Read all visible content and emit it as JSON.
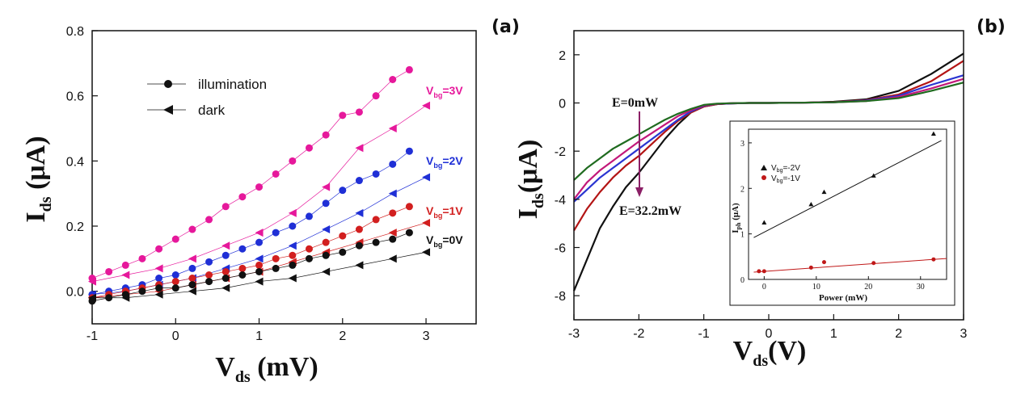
{
  "chart_data": [
    {
      "panel": "(a)",
      "type": "scatter",
      "xlabel_main": "V",
      "xlabel_sub": "ds",
      "xlabel_unit": " (mV)",
      "ylabel_main": "I",
      "ylabel_sub": "ds",
      "ylabel_unit": " (μA)",
      "xlim": [
        -1,
        3.6
      ],
      "ylim": [
        -0.1,
        0.8
      ],
      "xticks": [
        -1,
        0,
        1,
        2,
        3
      ],
      "yticks": [
        0.0,
        0.2,
        0.4,
        0.6,
        0.8
      ],
      "ytick_labels": [
        "0.0",
        "0.2",
        "0.4",
        "0.6",
        "0.8"
      ],
      "legend": [
        {
          "label": "illumination",
          "marker": "circle"
        },
        {
          "label": "dark",
          "marker": "triangle-left"
        }
      ],
      "series": [
        {
          "name": "Vbg=3V",
          "label_main": "V",
          "label_sub": "bg",
          "label_rest": "=3V",
          "color": "#e6189b",
          "illumination": {
            "x": [
              -1,
              -0.8,
              -0.6,
              -0.4,
              -0.2,
              0,
              0.2,
              0.4,
              0.6,
              0.8,
              1,
              1.2,
              1.4,
              1.6,
              1.8,
              2,
              2.2,
              2.4,
              2.6,
              2.8
            ],
            "y": [
              0.04,
              0.06,
              0.08,
              0.1,
              0.13,
              0.16,
              0.19,
              0.22,
              0.26,
              0.29,
              0.32,
              0.36,
              0.4,
              0.44,
              0.48,
              0.54,
              0.55,
              0.6,
              0.65,
              0.68
            ]
          },
          "dark": {
            "x": [
              -1,
              -0.6,
              -0.2,
              0.2,
              0.6,
              1,
              1.4,
              1.8,
              2.2,
              2.6,
              3
            ],
            "y": [
              0.03,
              0.05,
              0.07,
              0.1,
              0.14,
              0.18,
              0.24,
              0.32,
              0.44,
              0.5,
              0.57
            ]
          }
        },
        {
          "name": "Vbg=2V",
          "label_main": "V",
          "label_sub": "bg",
          "label_rest": "=2V",
          "color": "#1f2fd6",
          "illumination": {
            "x": [
              -1,
              -0.8,
              -0.6,
              -0.4,
              -0.2,
              0,
              0.2,
              0.4,
              0.6,
              0.8,
              1,
              1.2,
              1.4,
              1.6,
              1.8,
              2,
              2.2,
              2.4,
              2.6,
              2.8
            ],
            "y": [
              -0.01,
              0.0,
              0.01,
              0.02,
              0.04,
              0.05,
              0.07,
              0.09,
              0.11,
              0.13,
              0.15,
              0.18,
              0.2,
              0.23,
              0.27,
              0.31,
              0.34,
              0.36,
              0.39,
              0.43
            ]
          },
          "dark": {
            "x": [
              -1,
              -0.6,
              -0.2,
              0.2,
              0.6,
              1,
              1.4,
              1.8,
              2.2,
              2.6,
              3
            ],
            "y": [
              -0.01,
              0.0,
              0.02,
              0.04,
              0.07,
              0.1,
              0.14,
              0.19,
              0.24,
              0.3,
              0.35
            ]
          }
        },
        {
          "name": "Vbg=1V",
          "label_main": "V",
          "label_sub": "bg",
          "label_rest": "=1V",
          "color": "#d21f1f",
          "illumination": {
            "x": [
              -1,
              -0.8,
              -0.6,
              -0.4,
              -0.2,
              0,
              0.2,
              0.4,
              0.6,
              0.8,
              1,
              1.2,
              1.4,
              1.6,
              1.8,
              2,
              2.2,
              2.4,
              2.6,
              2.8
            ],
            "y": [
              -0.02,
              -0.01,
              0.0,
              0.01,
              0.02,
              0.03,
              0.04,
              0.05,
              0.06,
              0.07,
              0.08,
              0.1,
              0.11,
              0.13,
              0.15,
              0.17,
              0.19,
              0.22,
              0.24,
              0.26
            ]
          },
          "dark": {
            "x": [
              -1,
              -0.6,
              -0.2,
              0.2,
              0.6,
              1,
              1.4,
              1.8,
              2.2,
              2.6,
              3
            ],
            "y": [
              -0.02,
              -0.01,
              0.0,
              0.02,
              0.04,
              0.06,
              0.09,
              0.12,
              0.15,
              0.18,
              0.21
            ]
          }
        },
        {
          "name": "Vbg=0V",
          "label_main": "V",
          "label_sub": "bg",
          "label_rest": "=0V",
          "color": "#111111",
          "illumination": {
            "x": [
              -1,
              -0.8,
              -0.6,
              -0.4,
              -0.2,
              0,
              0.2,
              0.4,
              0.6,
              0.8,
              1,
              1.2,
              1.4,
              1.6,
              1.8,
              2,
              2.2,
              2.4,
              2.6,
              2.8
            ],
            "y": [
              -0.03,
              -0.02,
              -0.01,
              0.0,
              0.01,
              0.01,
              0.02,
              0.03,
              0.04,
              0.05,
              0.06,
              0.07,
              0.08,
              0.1,
              0.11,
              0.12,
              0.14,
              0.15,
              0.16,
              0.18
            ]
          },
          "dark": {
            "x": [
              -1,
              -0.6,
              -0.2,
              0.2,
              0.6,
              1,
              1.4,
              1.8,
              2.2,
              2.6,
              3
            ],
            "y": [
              -0.02,
              -0.02,
              -0.01,
              0.0,
              0.01,
              0.03,
              0.04,
              0.06,
              0.08,
              0.1,
              0.12
            ]
          }
        }
      ]
    },
    {
      "panel": "(b)",
      "type": "line",
      "xlabel_main": "V",
      "xlabel_sub": "ds",
      "xlabel_unit": "(V)",
      "ylabel_main": "I",
      "ylabel_sub": "ds",
      "ylabel_unit": "(μA)",
      "xlim": [
        -3,
        3
      ],
      "ylim": [
        -9,
        3
      ],
      "xticks": [
        -3,
        -2,
        -1,
        0,
        1,
        2,
        3
      ],
      "yticks": [
        -8,
        -6,
        -4,
        -2,
        0,
        2
      ],
      "annotations": {
        "top": "E=0mW",
        "bottom": "E=32.2mW"
      },
      "curves": [
        {
          "name": "E=32.2mW",
          "color": "#111111",
          "x": [
            -3,
            -2.8,
            -2.6,
            -2.4,
            -2.2,
            -2,
            -1.8,
            -1.6,
            -1.4,
            -1.2,
            -1,
            -0.8,
            -0.6,
            -0.3,
            0,
            0.5,
            1,
            1.5,
            2,
            2.5,
            3
          ],
          "y": [
            -7.8,
            -6.5,
            -5.2,
            -4.3,
            -3.5,
            -2.9,
            -2.2,
            -1.5,
            -0.9,
            -0.4,
            -0.15,
            -0.05,
            -0.02,
            0.0,
            0.0,
            0.01,
            0.05,
            0.15,
            0.5,
            1.2,
            2.05
          ]
        },
        {
          "name": "curve-red",
          "color": "#b31414",
          "x": [
            -3,
            -2.8,
            -2.6,
            -2.4,
            -2.2,
            -2,
            -1.8,
            -1.6,
            -1.4,
            -1.2,
            -1,
            -0.8,
            -0.6,
            -0.3,
            0,
            0.5,
            1,
            1.5,
            2,
            2.5,
            3
          ],
          "y": [
            -5.3,
            -4.4,
            -3.7,
            -3.1,
            -2.6,
            -2.2,
            -1.7,
            -1.2,
            -0.75,
            -0.4,
            -0.15,
            -0.05,
            -0.02,
            0.0,
            0.0,
            0.01,
            0.04,
            0.12,
            0.35,
            0.9,
            1.75
          ]
        },
        {
          "name": "curve-blue",
          "color": "#2a35d1",
          "x": [
            -3,
            -2.8,
            -2.6,
            -2.4,
            -2.2,
            -2,
            -1.8,
            -1.6,
            -1.4,
            -1.2,
            -1,
            -0.8,
            -0.6,
            -0.3,
            0,
            0.5,
            1,
            1.5,
            2,
            2.5,
            3
          ],
          "y": [
            -4.1,
            -3.6,
            -3.1,
            -2.7,
            -2.3,
            -1.9,
            -1.5,
            -1.1,
            -0.7,
            -0.35,
            -0.12,
            -0.04,
            -0.02,
            0.0,
            0.0,
            0.01,
            0.03,
            0.1,
            0.3,
            0.75,
            1.15
          ]
        },
        {
          "name": "curve-magenta",
          "color": "#c2187a",
          "x": [
            -3,
            -2.8,
            -2.6,
            -2.4,
            -2.2,
            -2,
            -1.8,
            -1.6,
            -1.4,
            -1.2,
            -1,
            -0.8,
            -0.6,
            -0.3,
            0,
            0.5,
            1,
            1.5,
            2,
            2.5,
            3
          ],
          "y": [
            -4.0,
            -3.3,
            -2.8,
            -2.4,
            -2.0,
            -1.6,
            -1.25,
            -0.9,
            -0.55,
            -0.3,
            -0.1,
            -0.04,
            -0.01,
            0.0,
            0.0,
            0.01,
            0.03,
            0.08,
            0.25,
            0.6,
            1.0
          ]
        },
        {
          "name": "E=0mW",
          "color": "#1f6b1f",
          "x": [
            -3,
            -2.8,
            -2.6,
            -2.4,
            -2.2,
            -2,
            -1.8,
            -1.6,
            -1.4,
            -1.2,
            -1,
            -0.8,
            -0.6,
            -0.3,
            0,
            0.5,
            1,
            1.5,
            2,
            2.5,
            3
          ],
          "y": [
            -3.2,
            -2.7,
            -2.3,
            -1.9,
            -1.6,
            -1.3,
            -1.0,
            -0.7,
            -0.45,
            -0.25,
            -0.08,
            -0.03,
            -0.01,
            0.0,
            0.0,
            0.01,
            0.03,
            0.08,
            0.2,
            0.5,
            0.85
          ]
        }
      ],
      "inset": {
        "type": "scatter",
        "xlabel": "Power (mW)",
        "ylabel": "I",
        "ylabel_sub": "ph",
        "ylabel_unit": " (μA)",
        "xlim": [
          -3,
          35
        ],
        "ylim": [
          0,
          3.3
        ],
        "xticks": [
          0,
          10,
          20,
          30
        ],
        "yticks": [
          0,
          1,
          2,
          3
        ],
        "series": [
          {
            "name": "Vbg=-2V",
            "label": "V",
            "label_sub": "bg",
            "label_rest": "=-2V",
            "color": "#111111",
            "marker": "triangle",
            "x": [
              0,
              9,
              11.5,
              21,
              32.5
            ],
            "y": [
              1.25,
              1.65,
              1.92,
              2.28,
              3.2
            ],
            "fit": {
              "x": [
                -2,
                34
              ],
              "y": [
                0.92,
                3.05
              ]
            }
          },
          {
            "name": "Vbg=-1V",
            "label": "V",
            "label_sub": "bg",
            "label_rest": "=-1V",
            "color": "#c01818",
            "marker": "circle",
            "x": [
              -1,
              0,
              9,
              11.5,
              21,
              32.5
            ],
            "y": [
              0.18,
              0.18,
              0.26,
              0.38,
              0.36,
              0.44
            ],
            "fit": {
              "x": [
                -2,
                35
              ],
              "y": [
                0.16,
                0.46
              ]
            }
          }
        ]
      }
    }
  ]
}
